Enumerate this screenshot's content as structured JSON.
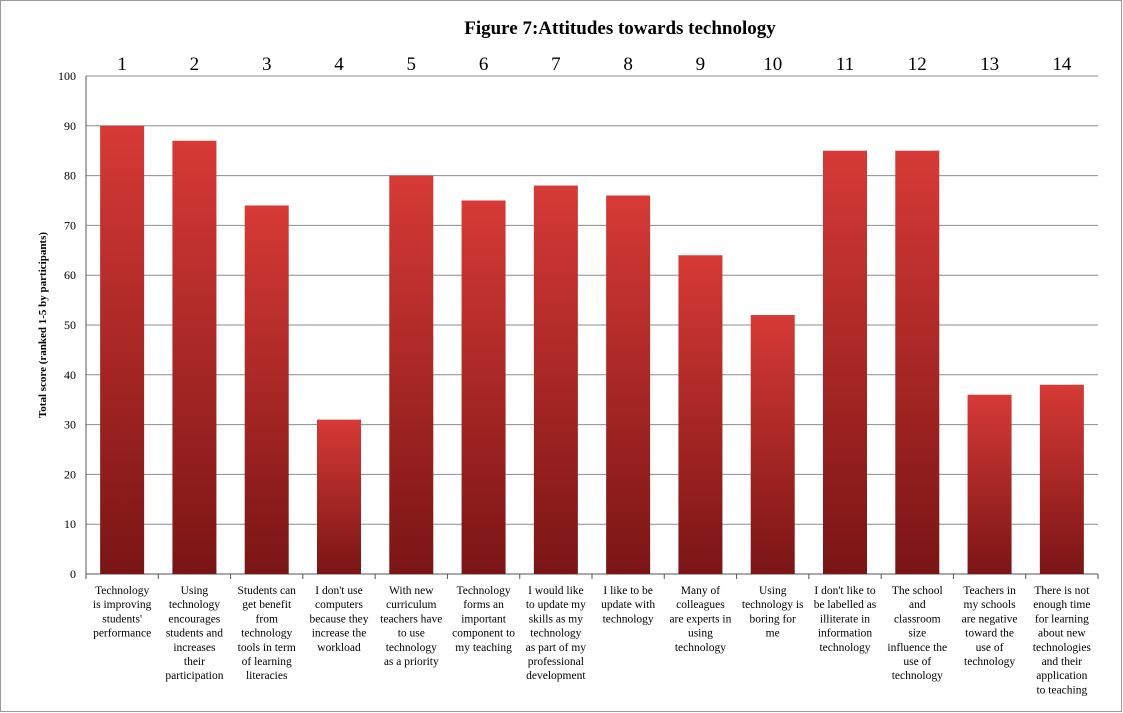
{
  "chart_data": {
    "type": "bar",
    "title": "Figure 7:Attitudes towards technology",
    "xlabel": "",
    "ylabel": "Total score (ranked 1-5 by participants)",
    "ylim": [
      0,
      100
    ],
    "yticks": [
      0,
      10,
      20,
      30,
      40,
      50,
      60,
      70,
      80,
      90,
      100
    ],
    "grid": true,
    "bar_color": "#c8312f",
    "top_numbers": [
      "1",
      "2",
      "3",
      "4",
      "5",
      "6",
      "7",
      "8",
      "9",
      "10",
      "11",
      "12",
      "13",
      "14"
    ],
    "categories": [
      "Technology is improving students' performance",
      "Using technology encourages students and increases their participation",
      "Students can get benefit from technology tools in term of learning literacies",
      "I don't use computers because they increase the workload",
      "With new curriculum teachers have to use technology as a priority",
      "Technology forms an important component to my teaching",
      "I would like to update my skills as my technology as part of my professional development",
      "I like to be update with technology",
      "Many of colleagues are experts in using technology",
      "Using technology is boring for me",
      "I don't like to be labelled as illiterate in information technology",
      "The school and classroom size influence the use of technology",
      "Teachers in my schools are negative toward the use of technology",
      "There is not enough time for learning about new technologies and their application to teaching"
    ],
    "category_lines": [
      [
        "Technology",
        "is improving",
        "students'",
        "performance"
      ],
      [
        "Using",
        "technology",
        "encourages",
        "students and",
        "increases",
        "their",
        "participation"
      ],
      [
        "Students can",
        "get benefit",
        "from",
        "technology",
        "tools in term",
        "of learning",
        "literacies"
      ],
      [
        "I don't use",
        "computers",
        "because they",
        "increase the",
        "workload"
      ],
      [
        "With new",
        "curriculum",
        "teachers have",
        "to use",
        "technology",
        "as a  priority"
      ],
      [
        "Technology",
        "forms an",
        "important",
        "component to",
        "my teaching"
      ],
      [
        "I would like",
        "to update my",
        "skills as my",
        "technology",
        "as part of my",
        "professional",
        "development"
      ],
      [
        "I like to be",
        "update with",
        "technology"
      ],
      [
        "Many of",
        "colleagues",
        "are experts in",
        "using",
        "technology"
      ],
      [
        "Using",
        "technology is",
        "boring for",
        "me"
      ],
      [
        "I don't like to",
        "be labelled as",
        "illiterate in",
        "information",
        "technology"
      ],
      [
        "The school",
        "and",
        "classroom",
        "size",
        "influence the",
        "use of",
        "technology"
      ],
      [
        "Teachers in",
        "my schools",
        "are negative",
        "toward the",
        "use of",
        "technology"
      ],
      [
        "There is not",
        "enough time",
        "for learning",
        "about new",
        "technologies",
        "and their",
        "application",
        "to teaching"
      ]
    ],
    "values": [
      90,
      87,
      74,
      31,
      80,
      75,
      78,
      76,
      64,
      52,
      85,
      85,
      36,
      38
    ]
  }
}
